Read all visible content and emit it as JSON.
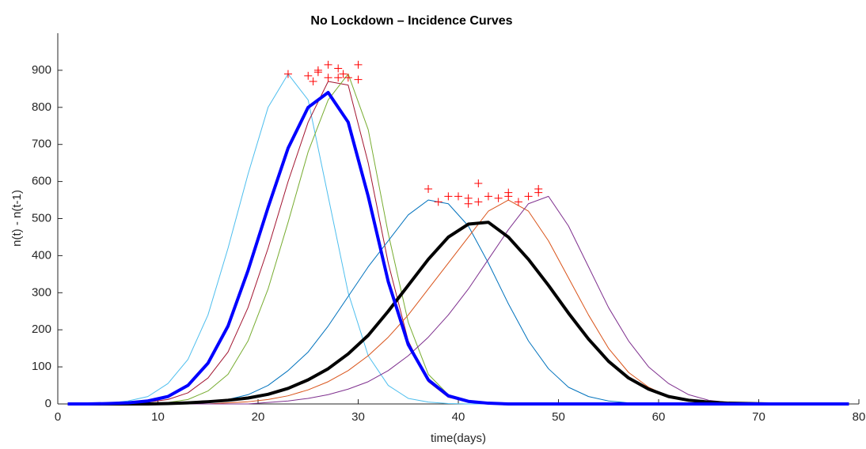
{
  "chart_data": {
    "type": "line",
    "title": "No Lockdown – Incidence Curves",
    "xlabel": "time(days)",
    "ylabel": "n(t) - n(t-1)",
    "xlim": [
      0,
      80
    ],
    "ylim": [
      0,
      1000
    ],
    "xticks": [
      0,
      10,
      20,
      30,
      40,
      50,
      60,
      70,
      80
    ],
    "yticks": [
      0,
      100,
      200,
      300,
      400,
      500,
      600,
      700,
      800,
      900
    ],
    "grid": false,
    "x": [
      1,
      3,
      5,
      7,
      9,
      11,
      13,
      15,
      17,
      19,
      21,
      23,
      25,
      27,
      29,
      31,
      33,
      35,
      37,
      39,
      41,
      43,
      45,
      47,
      49,
      51,
      53,
      55,
      57,
      59,
      61,
      63,
      65,
      67,
      69,
      71,
      73,
      75,
      77,
      79
    ],
    "series": [
      {
        "color": "#4dbeee",
        "line_width": 1,
        "values": [
          0,
          0,
          2,
          8,
          20,
          55,
          120,
          240,
          420,
          620,
          800,
          890,
          820,
          560,
          300,
          130,
          50,
          15,
          5,
          1,
          0,
          0,
          0,
          0,
          0,
          0,
          0,
          0,
          0,
          0,
          0,
          0,
          0,
          0,
          0,
          0,
          0,
          0,
          0,
          0
        ]
      },
      {
        "color": "#a2142f",
        "line_width": 1,
        "values": [
          0,
          0,
          0,
          2,
          5,
          12,
          30,
          70,
          140,
          260,
          420,
          600,
          760,
          870,
          860,
          650,
          380,
          170,
          60,
          18,
          5,
          1,
          0,
          0,
          0,
          0,
          0,
          0,
          0,
          0,
          0,
          0,
          0,
          0,
          0,
          0,
          0,
          0,
          0,
          0
        ]
      },
      {
        "color": "#77ac30",
        "line_width": 1,
        "values": [
          0,
          0,
          0,
          0,
          0,
          4,
          12,
          35,
          80,
          170,
          310,
          490,
          680,
          820,
          890,
          740,
          460,
          220,
          80,
          25,
          6,
          1,
          0,
          0,
          0,
          0,
          0,
          0,
          0,
          0,
          0,
          0,
          0,
          0,
          0,
          0,
          0,
          0,
          0,
          0
        ]
      },
      {
        "color": "#0072bd",
        "line_width": 1,
        "values": [
          0,
          0,
          0,
          0,
          0,
          0,
          2,
          5,
          12,
          25,
          50,
          90,
          140,
          210,
          290,
          370,
          440,
          510,
          550,
          540,
          480,
          380,
          270,
          170,
          95,
          45,
          20,
          8,
          3,
          1,
          0,
          0,
          0,
          0,
          0,
          0,
          0,
          0,
          0,
          0
        ]
      },
      {
        "color": "#d95319",
        "line_width": 1,
        "values": [
          0,
          0,
          0,
          0,
          0,
          0,
          0,
          0,
          3,
          6,
          12,
          22,
          38,
          60,
          90,
          130,
          180,
          240,
          310,
          380,
          450,
          520,
          550,
          520,
          440,
          340,
          240,
          150,
          85,
          45,
          20,
          8,
          3,
          1,
          0,
          0,
          0,
          0,
          0,
          0
        ]
      },
      {
        "color": "#7e2f8e",
        "line_width": 1,
        "values": [
          0,
          0,
          0,
          0,
          0,
          0,
          0,
          0,
          0,
          0,
          4,
          8,
          15,
          25,
          40,
          60,
          90,
          130,
          180,
          240,
          310,
          390,
          470,
          540,
          560,
          480,
          370,
          260,
          170,
          100,
          55,
          25,
          10,
          4,
          1,
          0,
          0,
          0,
          0,
          0
        ]
      },
      {
        "color": "#000000",
        "line_width": 4,
        "values": [
          0,
          0,
          0,
          0,
          0,
          1,
          3,
          6,
          10,
          16,
          26,
          42,
          65,
          95,
          135,
          185,
          250,
          320,
          390,
          450,
          485,
          490,
          450,
          390,
          320,
          245,
          175,
          115,
          70,
          40,
          20,
          10,
          5,
          2,
          1,
          0,
          0,
          0,
          0,
          0
        ]
      },
      {
        "color": "#0000ff",
        "line_width": 4,
        "values": [
          0,
          0,
          1,
          3,
          8,
          20,
          50,
          110,
          210,
          360,
          530,
          690,
          800,
          840,
          760,
          560,
          330,
          160,
          65,
          22,
          7,
          2,
          0,
          0,
          0,
          0,
          0,
          0,
          0,
          0,
          0,
          0,
          0,
          0,
          0,
          0,
          0,
          0,
          0,
          0
        ]
      }
    ],
    "markers": {
      "color": "#ff0000",
      "x": [
        23,
        25,
        25.5,
        26,
        26,
        27,
        27,
        28,
        28,
        28.5,
        29,
        30,
        30,
        37,
        38,
        39,
        40,
        41,
        41,
        42,
        42,
        43,
        44,
        45,
        45,
        46,
        47,
        48,
        48
      ],
      "y": [
        890,
        885,
        870,
        895,
        900,
        880,
        915,
        905,
        880,
        890,
        880,
        915,
        875,
        580,
        545,
        560,
        560,
        555,
        540,
        595,
        545,
        560,
        555,
        570,
        560,
        545,
        560,
        580,
        570
      ]
    }
  }
}
